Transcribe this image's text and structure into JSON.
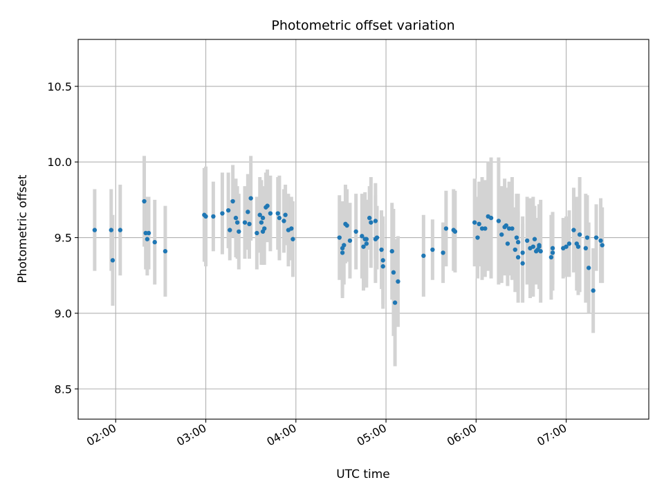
{
  "chart_data": {
    "type": "scatter",
    "title": "Photometric offset variation",
    "xlabel": "UTC time",
    "ylabel": "Photometric offset",
    "x_ticks": [
      "02:00",
      "03:00",
      "04:00",
      "05:00",
      "06:00",
      "07:00"
    ],
    "y_ticks": [
      "8.5",
      "9.0",
      "9.5",
      "10.0",
      "10.5"
    ],
    "grid": true,
    "colors": {
      "point": "#1f77b4",
      "errorbar": "#d3d3d3"
    },
    "series": [
      {
        "x": [
          "01:46",
          "01:57",
          "01:58",
          "02:03",
          "02:19",
          "02:20",
          "02:21",
          "02:22",
          "02:26",
          "02:33",
          "02:59",
          "03:00",
          "03:05",
          "03:11",
          "03:15",
          "03:16",
          "03:18",
          "03:20",
          "03:21",
          "03:22",
          "03:26",
          "03:28",
          "03:29",
          "03:30",
          "03:34",
          "03:36",
          "03:37",
          "03:38",
          "03:38",
          "03:39",
          "03:40",
          "03:41",
          "03:43",
          "03:48",
          "03:49",
          "03:52",
          "03:53",
          "03:55",
          "03:57",
          "03:58",
          "04:29",
          "04:31",
          "04:31",
          "04:32",
          "04:33",
          "04:34",
          "04:36",
          "04:40",
          "04:44",
          "04:45",
          "04:46",
          "04:47",
          "04:47",
          "04:49",
          "04:50",
          "04:53",
          "04:53",
          "04:54",
          "04:57",
          "04:58",
          "04:58",
          "05:04",
          "05:05",
          "05:06",
          "05:08",
          "05:25",
          "05:31",
          "05:38",
          "05:40",
          "05:45",
          "05:46",
          "05:59",
          "06:01",
          "06:02",
          "06:04",
          "06:06",
          "06:08",
          "06:10",
          "06:15",
          "06:17",
          "06:19",
          "06:20",
          "06:21",
          "06:22",
          "06:24",
          "06:26",
          "06:27",
          "06:28",
          "06:28",
          "06:31",
          "06:31",
          "06:34",
          "06:36",
          "06:38",
          "06:39",
          "06:40",
          "06:41",
          "06:42",
          "06:42",
          "06:43",
          "06:50",
          "06:51",
          "06:51",
          "06:58",
          "07:00",
          "07:02",
          "07:05",
          "07:07",
          "07:08",
          "07:09",
          "07:13",
          "07:14",
          "07:15",
          "07:18",
          "07:20",
          "07:23",
          "07:24"
        ],
        "y": [
          9.55,
          9.55,
          9.35,
          9.55,
          9.74,
          9.53,
          9.49,
          9.53,
          9.47,
          9.41,
          9.65,
          9.64,
          9.64,
          9.66,
          9.68,
          9.55,
          9.74,
          9.63,
          9.6,
          9.54,
          9.6,
          9.67,
          9.59,
          9.76,
          9.53,
          9.65,
          9.6,
          9.54,
          9.63,
          9.56,
          9.7,
          9.71,
          9.66,
          9.66,
          9.63,
          9.61,
          9.65,
          9.55,
          9.56,
          9.49,
          9.5,
          9.4,
          9.43,
          9.45,
          9.59,
          9.58,
          9.48,
          9.54,
          9.51,
          9.44,
          9.49,
          9.49,
          9.46,
          9.63,
          9.6,
          9.49,
          9.61,
          9.5,
          9.42,
          9.35,
          9.31,
          9.41,
          9.27,
          9.07,
          9.21,
          9.38,
          9.42,
          9.4,
          9.56,
          9.55,
          9.54,
          9.6,
          9.5,
          9.59,
          9.56,
          9.56,
          9.64,
          9.63,
          9.61,
          9.52,
          9.57,
          9.58,
          9.46,
          9.56,
          9.56,
          9.42,
          9.5,
          9.47,
          9.37,
          9.4,
          9.33,
          9.48,
          9.43,
          9.44,
          9.49,
          9.41,
          9.42,
          9.45,
          9.44,
          9.41,
          9.37,
          9.4,
          9.43,
          9.43,
          9.44,
          9.46,
          9.55,
          9.46,
          9.44,
          9.52,
          9.43,
          9.5,
          9.3,
          9.15,
          9.5,
          9.48,
          9.45
        ],
        "yerr": [
          0.27,
          0.27,
          0.3,
          0.3,
          0.3,
          0.24,
          0.24,
          0.24,
          0.28,
          0.3,
          0.31,
          0.33,
          0.23,
          0.27,
          0.25,
          0.2,
          0.24,
          0.26,
          0.24,
          0.25,
          0.24,
          0.25,
          0.23,
          0.28,
          0.24,
          0.25,
          0.28,
          0.22,
          0.21,
          0.24,
          0.23,
          0.24,
          0.25,
          0.24,
          0.28,
          0.21,
          0.2,
          0.24,
          0.21,
          0.25,
          0.28,
          0.3,
          0.31,
          0.26,
          0.26,
          0.24,
          0.25,
          0.25,
          0.28,
          0.29,
          0.31,
          0.26,
          0.29,
          0.21,
          0.3,
          0.29,
          0.25,
          0.21,
          0.26,
          0.29,
          0.28,
          0.32,
          0.42,
          0.42,
          0.3,
          0.27,
          0.2,
          0.2,
          0.25,
          0.27,
          0.27,
          0.29,
          0.27,
          0.28,
          0.34,
          0.32,
          0.36,
          0.4,
          0.42,
          0.32,
          0.32,
          0.25,
          0.28,
          0.31,
          0.34,
          0.28,
          0.29,
          0.32,
          0.3,
          0.24,
          0.26,
          0.29,
          0.33,
          0.33,
          0.22,
          0.22,
          0.21,
          0.27,
          0.28,
          0.34,
          0.28,
          0.25,
          0.24,
          0.2,
          0.2,
          0.22,
          0.28,
          0.31,
          0.32,
          0.38,
          0.36,
          0.28,
          0.3,
          0.28,
          0.22,
          0.28,
          0.25
        ]
      }
    ]
  }
}
